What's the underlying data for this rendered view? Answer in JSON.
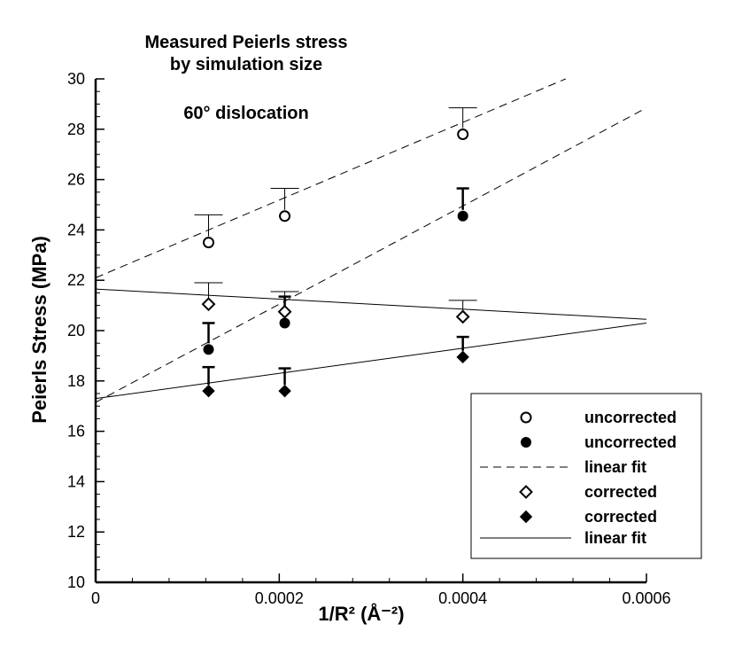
{
  "chart_data": {
    "type": "scatter",
    "title_lines": [
      "Measured Peierls stress",
      "by simulation size"
    ],
    "annotation": "60° dislocation",
    "xlabel": "1/R² (Å⁻²)",
    "ylabel": "Peierls Stress (MPa)",
    "xlim": [
      0,
      0.0006
    ],
    "ylim": [
      10,
      30
    ],
    "x_ticks": [
      0,
      0.0002,
      0.0004,
      0.0006
    ],
    "x_tick_labels": [
      "0",
      "0.0002",
      "0.0004",
      "0.0006"
    ],
    "y_ticks": [
      10,
      12,
      14,
      16,
      18,
      20,
      22,
      24,
      26,
      28,
      30
    ],
    "y_tick_labels": [
      "10",
      "12",
      "14",
      "16",
      "18",
      "20",
      "22",
      "24",
      "26",
      "28",
      "30"
    ],
    "series": [
      {
        "name": "uncorrected",
        "marker": "open-circle",
        "x": [
          0.000123,
          0.000206,
          0.0004
        ],
        "y": [
          23.5,
          24.55,
          27.8
        ],
        "error_top": [
          24.6,
          25.65,
          28.85
        ],
        "error_style": "thin"
      },
      {
        "name": "uncorrected",
        "marker": "filled-circle",
        "x": [
          0.000123,
          0.000206,
          0.0004
        ],
        "y": [
          19.25,
          20.3,
          24.55
        ],
        "error_top": [
          20.3,
          21.35,
          25.65
        ],
        "error_style": "thick"
      },
      {
        "name": "corrected",
        "marker": "open-diamond",
        "x": [
          0.000123,
          0.000206,
          0.0004
        ],
        "y": [
          21.05,
          20.75,
          20.55
        ],
        "error_top": [
          21.9,
          21.55,
          21.2
        ],
        "error_style": "thin"
      },
      {
        "name": "corrected",
        "marker": "filled-diamond",
        "x": [
          0.000123,
          0.000206,
          0.0004
        ],
        "y": [
          17.6,
          17.6,
          18.95
        ],
        "error_top": [
          18.55,
          18.5,
          19.75
        ],
        "error_style": "thick"
      }
    ],
    "fit_lines": [
      {
        "name": "linear fit",
        "style": "dashed",
        "x": [
          0,
          0.000512
        ],
        "y": [
          22.1,
          30.0
        ]
      },
      {
        "name": "linear fit",
        "style": "dashed",
        "x": [
          0,
          0.0006
        ],
        "y": [
          17.15,
          28.85
        ]
      },
      {
        "name": "linear fit",
        "style": "solid",
        "x": [
          0,
          0.0006
        ],
        "y": [
          21.65,
          20.45
        ]
      },
      {
        "name": "linear fit",
        "style": "solid",
        "x": [
          0,
          0.0006
        ],
        "y": [
          17.3,
          20.3
        ]
      }
    ],
    "legend": {
      "position": "bottom-right",
      "entries": [
        {
          "label": "uncorrected",
          "symbol": "open-circle"
        },
        {
          "label": "uncorrected",
          "symbol": "filled-circle"
        },
        {
          "label": "linear fit",
          "symbol": "dashed-line"
        },
        {
          "label": "corrected",
          "symbol": "open-diamond"
        },
        {
          "label": "corrected",
          "symbol": "filled-diamond"
        },
        {
          "label": "linear fit",
          "symbol": "solid-line"
        }
      ]
    }
  }
}
